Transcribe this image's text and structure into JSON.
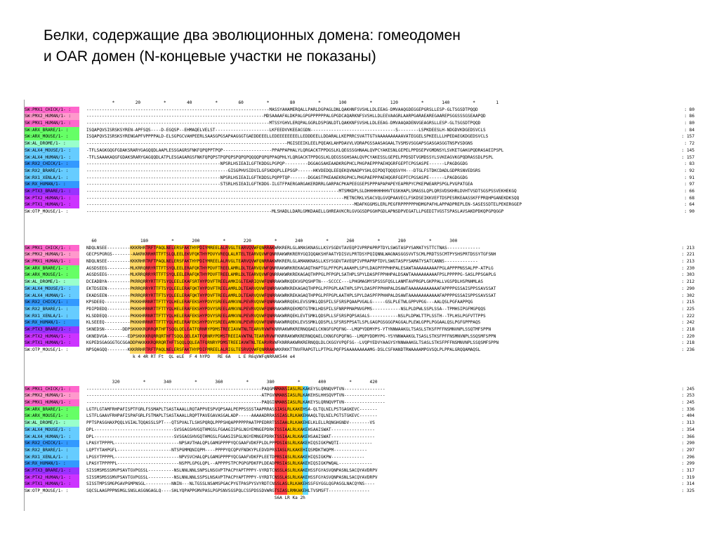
{
  "title": {
    "line1": "Белки, содержащие два эволюционных домена: гомеодомен",
    "line2": "и OAR домен (N-концевые участки не показаны)"
  },
  "label_colors": [
    "#ff66cc",
    "#ff99cc",
    "#ff66cc",
    "#66ff66",
    "#66ff66",
    "#99ffcc",
    "#66ccff",
    "#66ccff",
    "#3399ff",
    "#66ccff",
    "#66ccff",
    "#3399ff",
    "#9933ff",
    "#cc33ff",
    "#cc33ff",
    "#ffffff"
  ],
  "labels": [
    "SW:PMX1_CHICK/1-",
    "SW:PMX2_HUMAN/1-",
    "SW:PMX1_HUMAN/1-",
    "SW:ARX_BRARE/1-",
    "SW:ARX_MOUSE/1-",
    "SW:AL_DROME/1-",
    "SW:ALX4_MOUSE/1-",
    "SW:ALX4_HUMAN/1-",
    "SW:RX2_CHICK/1-",
    "SW:RX2_BRARE/1-",
    "SW:RX1_XENLA/1-",
    "SW:RX_HUMAN/1-",
    "SW:PTX3_BRARE/1-",
    "SW:PTX2_HUMAN/1-",
    "SW:PTX1_HUMAN/1-",
    "SW:OTP_MOUSE/1-"
  ],
  "blocks": [
    {
      "ruler": "          *        20         *        40         *        60         *        80         *       100         *       120         *       140         *        1",
      "seqs": [
        "-----------------------------------------------------------------------MASSYAHAMERQALLPARLDGPAGLDNLQAKHNFSVSHLLDLEEAG-DMVAAQGDEGGEPGRSLLESP-GLTSGSDTPQQD",
        "---------------------------------------------------------------------MDSAAAAFALDKPALGPGPPPPPPALGPGDCAQARKNFSVSHLLDLEEVAAGRLAARPGARAEAREGAAREPSGGSSSGSEAAPQD",
        "-----------------------------------------------------------------------MTSSYGHVLERQPALGGRLDSPGNLDTLQAKKNFSVSHLLDLEEAG-DMVAAQADENVGEAGRSLLESP-GLTSGSDTPQQD",
        "ISQAPQVSISRSKSYREN-APFSQS----D-EGQSP--EHMAQELVELST---------------------LKFEEDVVKEEACGDN---------------------------------S--------LSPKDEESLH-NDGDVKDGEDSVCLS",
        "ISQAPQVSISRSKSYRENGAPFVPPPPALD-ELSGPGCVAHPEERLSAASGPGSAPAAGGGTGAEDDEEELLEDEEEEEEEELLEDDDEELLDDARALLKEPRRCSVATTGTVAAAAAAAAAAVATEGGELSPKEELLLHPEDAEGKDGEDSVCLS",
        "------------------------------------------------------------------------------MGISEEIKLEELPQEAKLAHPDAVVLVDRAPGSSAASAGAALTVSMSVSGGAPSGASGASGGTNSPVSDGNS",
        "-TFLSAGKGQGFGDAKSRARYGAGQQDLAAPLESSGAGRSFNKFQPQPPTPQP-------------------PPAPPAPHALYLQRGACKTPPDGSLKLQEGSSGHNAALQVPCYAKESNLGEPELPPDSEPVGMDNSYLSVKETGAKGPQDRASAEIPSPL",
        "-TFLSAAAKAQGFGDAKSRARYGAGQQDLATPLESGAGARGSFNKFQPQPSTPQPQPSPQPQPQQQQPQPQPPAQPHLYLQRGACKTPPDGSLKLQEGSSGHSAALQVPCYAKESSLGEPELPPDSDTVGMDSSYLSVKEAGVKGPQDRASSDLPSPL",
        "----------------------------------------------------NPSRLHSIEAILGFTKDDGLPGPQP---------DGGAGSAKEAADKRGPHCLPHGPAEPPPAEHQGRFGEPTCPGSASPE------LPAGDGGDG",
        "-------------------------------------------------------GISGPHVSIDVILGFSKDQPLLEPSGP------HKVDEDQLEEQEKQVNADPYSHLQIPDQTQQQSVYH---DTGLFSTDKCDADLGDPRSNVEDSRS",
        "----------------------------------------------------NPSRLHSIEAILGFTKDDSLPQPPTQP-------DGGASTPKEAAEKRGPHCLPHGPAEPPPAEHQGRFGEPTCPGSASPE------LPAGDGGDG",
        "----------------------------------------------------STSRLHSIEAILGFTKDDG-ILGTFPAERGARGAKERDRRLGARPACPKAPEEGSEPSPPPAPAPAPEYEAPRPYCPKEPWEARPSPGLPVGPATGEA",
        "--------------------------------------------------------------------------------------------------MTSMKDPLSLDHHHHHHHHVTGSKHAPLSMASSLQPLQRSVDSKHRLDVHTVSDTSGSPSSVEKHEKGQ",
        "----------------------------------------------------------------------------------------------------METNCRKLVSACVQLGVQPAAVECLFSKDSEIKKVEFTDSPESRKEAASSKFFPRQHPGANEKDKSQQ",
        "--------------------------------------------------------------------------------------------------------MDAFKGGMSLERLPEGFRPPPPPPHDMGPAFHLAPPADPREPLEN-SASESSDTELPEKERGGEP",
        "------------------------------------------------------------------------MLSHADLLDARLGMKDAAELLGHREAVKCRLGVGGSDPGGHPGDLAPNSDPVEGATLLPGEDITVGSTSPASLAVSAKDPDKQPGPQGGP"
      ],
      "nums": [
        "80",
        "86",
        "80",
        "84",
        "157",
        "72",
        "145",
        "157",
        "83",
        "92",
        "91",
        "97",
        "66",
        "68",
        "64",
        "90"
      ]
    },
    {
      "ruler": "  60                 180         *       200         *       220         *       240         *       260         *       280         *       300",
      "seqs": [
        "NDQLNSEE---------KKKRHRTRFTPAQLNELERSFAKTHYPDIYMREELALRVGLTEARVQVWFQNRRAKWRKRERLGLAMASKNASLLKSYSGDVTAVEQPIVPRPAPRPTDYLSWGTASPYSAMATYSTTCTNAS-------------",
        "GECPSPGRGS--------AAKRKRRHRTTFTSLQLEELEKVFQKTHYPDVYVREQLALRTELTEARVQVWFQNRRAKWRKRERYGQIQQAKSHFAATYDISVLPRTDSYPQIQNNLWAGNASGGSVVTSCMLPRDTSSCMTPYSHSPRTDSSYTGFSNH",
        "NDQLNSEE---------KKKRHRTRFTPAQLNELERSFAKTHYPDIYMREELALRVGLTEARVQVWFQNRRAKWRKRERLGLAMANKNASLLKSYSGDVTAVEQPIVPRAPRPTDYLSWGTASPYSAMATYSATCANNS-------------",
        "AGSDSEEG---------MLKRRQRRYRTTFTSYQLEELERAFQKTHYPDVFTREELAMRLDLTEARVQVWFQNRRAKWRKREKAGAQTHAPTGLPFPGPLAAAHPLSPYLDAGPFPPHHPALESAWTAAAAAAAAAFPGLAPPPPNSSALPP-ATPLG",
        "AGSDSEEG---------MLKRRQRRYRTTFTSYQLEELERAFQKTHYPDVFTREELAMRLDLTEARVQVWFQNRRAKWRKREKAGAQTHPPGLPFPGPLSATHPLSPYLDASPFPPHHPALDSAWTAAAAAAAAAAFPSLPPPPPG-SASLPPSGAPLG",
        "DCEADBYA---------PKRRQRRYRTTFTSYQLEELEKAFSRTHYPDVFTREELAMKIGLTEARIQVWFQNRRAKWRKQEKVGPQSHPTN---SCCCC---LPHGMAGMYSPSSSFQSLLANMTAVPRGPLGKPPALLVGSPDLHSPNHMLAS",
        "EKTDSEEN---------PKRRQRRYRTTFTSYQLEELERAFQKTHYPDVFTREELAMRLDLTEARVQVWFQNRRAKWRKREKAGAQTHPPGLPFPGPLAATHPLSPYLDASPFPPHHPALDSAWTAAAAAAAAAAAAFAPPPPGSSAISPPSSAVSSAT",
        "EKADSEEN---------PKRRQRRYRTTFTSYQLEELERAFQKTHYPDVFTREELAMRLDLTEARVQVWFQNRRAKWRKREKAGAQTHPPGLPFPGPLAATHPLSPYLDASPFPPHHPALDSAWTAAAAAAAAAAAAFAPPPPGSSAISPPSSAVSSAT",
        "KPSDEEQ----------PKKKHRRNRTTFTTYQLHELERAFEKSHYPDVYSREELAMKVNLPEVRVQVWFQNRRAKWRRQEKLEVSSMKLQDSPILSFSRSPQAAPVGALG-----GSLPLETWLGPPVPGG---AALQSLPGFAAPPQG",
        "PDIPDEDQ---------PKKKHRRNRTTFTTYQLHELERAFEKSHYPDVYSREELAMKVNLPEVRVQVWFQNRRAKWRRQEKMDTGTMKLHDSPILSFNRPPMAPNVGPMS-----------NSLPLDPWLSSPLSSA--TPMHSIPGFMGPQQS",
        "KLSDDEQQ---------PKKKHRRNRTTFTTYQLHELERAFEKSHYPDVYSREELAMKVNLPEVRVQVWFQNRRAKWRRQEKLEVTSMKLQDSPLLSFSRSPQPSASALS-----------NSLPLDPWLTTPLSSTH--TPLHSLPGFVTTPPS",
        "KLSEEEQ----------PKKKHRRNRTTFTTYQLHELERAFEKSHYPDVYSREELAMKVNLPEVRVQVWFQNRRAKWRRQEKLEVSSMKLQDSPLLSFSRSPPSATLSPLGAGPGSGGGPAGGALPLEWLGPPLPGGAALQSLPGFGPPPAQS",
        "SKNEDSN-------DDPSKKKKRQRRQRTHFTSQQLQELEATFQRNRYPDMSTREEIAVWTNLTEARVRVWFKNRRAKWRKRERNQQAELCKNGFGPQFNG--LMQPYDDMYPS-YTYNNWAAKGLTSASLSTKSFPFFNSMNVNPLSSQTMFSPPN",
        "GKNEDVGA--------EDPSKKKKRQRRQRTHFTSQQLQELEATFQRNRYPDMSTREEIAVWTNLTEARVRVWFKNRRAKWRKRERNQQAELCKNGFGPQFNG--LMQPYDDMYPG-YSYNNWAAKGLTSASLSTKSFPFFNSMNVNPLSSQSMFSPPN",
        "KGPEDSGAGGGTGCGGADDPAKKKKRQRRQRTHFTSQQLQQLEATFQRNRYPDMSTREEIAVWTNLTEARVRVWFKNRRAKWRKRERNQQLDLCKGGYVPQFSG--LVQPYEDVYAAGYSYNNWAAKGLTSASLSTKSFPFFNSMNVNPLSSQSMFSPPN",
        "NPSQAGQQ--------KKKRRHRTRFTPAQLNELERSFAKTHYPDIFMREELALRIGLTESRVQVWFQNRRAKWKKRKKTTNVFRAPGTLLPTPGLPQFPSAAAAAAAAAMG-DSLCSFHANDTRWAAAAMPGVSQLPLPPALGRQQAMAQSL"
      ],
      "nums": [
        "213",
        "221",
        "213",
        "230",
        "303",
        "212",
        "290",
        "302",
        "215",
        "225",
        "222",
        "242",
        "218",
        "220",
        "218",
        "236"
      ],
      "consensus": "                  k 4 4R RT Ft  QL eLE  F 4 hYPD   RE 6A   L E R6qVWFqNRRAK544 e4"
    },
    {
      "ruler": "          320         *       340         *       360         *       380         *       400         *       420",
      "seqs": [
        "--------------------------------------------------------------------PAQGMNMANSIASLRLKAKEYSLQRNQVPTVN----------------",
        "--------------------------------------------------------------------ATPGVNMANSIASLRLKAKEHSLHHSQVPTVN----------------",
        "--------------------------------------------------------------------PAQGINMANSIASLRLKAKEYSLQRNQVPTVN----------------",
        "LGTFLGTAMFRHPAFISPTFGRLFSSMAPLTSASTAAALLRQTAPPVESPVQPSAALPEPPSSSSTAAPRRASSIASLRLKAKEHSA-QLTQLNILPSTGAGKEVC-------",
        "LSTFLGAAVFRHPAFISPAFGRLFSTMAPLTSASTAAALLRQPTPAVEGAVASGALADP-----AAAAADRRASSIASLRLKAKEHAAQLTQLNILPGTSTGKEVC-------",
        "PPTSPASGHAXPQQLVGIALTQQASSLSPT---QTSPVALTLSHSPQRQLPPPSHQAPPPPPPAATPPEDRRTSSIAALRLKAKEHELKLELLRQNGHGNDV--------VS",
        "DPL-------------------------------SVSGAGSHVGQTHMGSLFGAAGISPGLNGYEMNGEPDRKTSSIAALRLKAKEHSAAISWAT-----------------",
        "DPL-------------------------------SVSGAGSHVGQTHMGSLFGAASISPGLNGYEMNGEPDRKTSSIAALRLKAKEHSAAISWAT-----------------",
        "LPASYTPPPPL-------------------------NPSAVTHALQPLGAMGPPPPYQCGAAFVDKFPLDLPPPDSIASLRLKAKEHIQSIGKPWQTI-------------",
        "LQPTYTAHPGFL---------------------NTSPGMMQNIQPM----PPPPYQCQPVFNDKYPLEDVDPRSIASLRLKAKEHIQSMDKTWQPM-------------",
        "LPGSYTPPPPL-------------------------NPVSVCHALQPLGAMGPPPPYQCGAAFVDKFPLEETDPRSIASLRLKAKEHIQSIGKPW-------------",
        "LPASYTPPPPPL------------------------NSPPLGPGLQPL--APPPPSTPCPGPGPDKFPLDEADPRSIASLRLKAKEHIQSIGKPWQAL-------------",
        "SISSMSMSSSMVPSAVTGVPGSSL----------NSLNNLNNLSNPSLNSGVPTPACPYAPTPPPY-VYRDTCNSSLASLRLKAKEHSSFGYASVQNPASNLSACQYAVDRPV",
        "SISSMSMSSSMVPSAVTGVPGSSL----------NSLNNLNNLSSPSLNSAVPTPACPYAPTPPPY-VYRDTCNSSLASLRLKAKEHSSFGYASVQNPASNLSACQYAVDRPV",
        "SISSTMPSSMGPGAVPGMPNSGL----------NNIN---NLTGSSLNSAMSPGACPYGTPASPYSVYRDTCNSSLASLRLKAKEHSSFGYGGLQGPASGLNACQYNS----",
        "SQCSLAAGPPPNSMGLSNSLASGNGAGLQ----SHLYQPAPPGMVPASLPGPSNVSGSPQLCSSPDSSDVWRGTSIASLRMKAKEHLTVSMSFT----------------"
      ],
      "nums": [
        "245",
        "253",
        "245",
        "336",
        "404",
        "313",
        "354",
        "366",
        "290",
        "297",
        "296",
        "299",
        "317",
        "319",
        "314",
        "325"
      ],
      "consensus": "                                                                         S6A LR Ka 2h"
    }
  ]
}
